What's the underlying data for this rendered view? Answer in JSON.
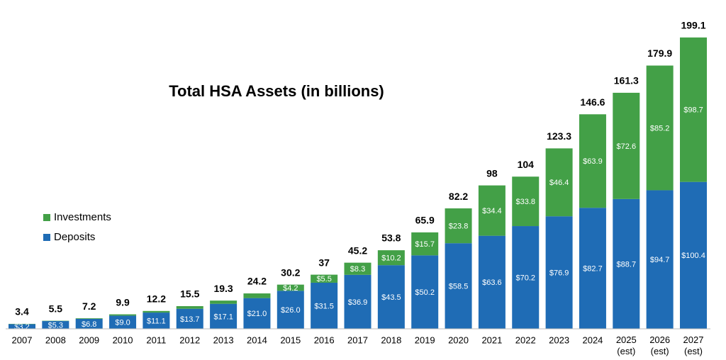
{
  "chart_data": {
    "type": "stacked-bar",
    "title": "Total HSA Assets (in billions)",
    "categories": [
      "2007",
      "2008",
      "2009",
      "2010",
      "2011",
      "2012",
      "2013",
      "2014",
      "2015",
      "2016",
      "2017",
      "2018",
      "2019",
      "2020",
      "2021",
      "2022",
      "2023",
      "2024",
      "2025 (est)",
      "2026 (est)",
      "2027 (est)"
    ],
    "series": [
      {
        "name": "Deposits",
        "color": "#1f6cb5",
        "values": [
          3.2,
          5.3,
          6.8,
          9.0,
          11.1,
          13.7,
          17.1,
          21.0,
          26.0,
          31.5,
          36.9,
          43.5,
          50.2,
          58.5,
          63.6,
          70.2,
          76.9,
          82.7,
          88.7,
          94.7,
          100.4
        ],
        "value_labels": [
          "$3.2",
          "$5.3",
          "$6.8",
          "$9.0",
          "$11.1",
          "$13.7",
          "$17.1",
          "$21.0",
          "$26.0",
          "$31.5",
          "$36.9",
          "$43.5",
          "$50.2",
          "$58.5",
          "$63.6",
          "$70.2",
          "$76.9",
          "$82.7",
          "$88.7",
          "$94.7",
          "$100.4"
        ]
      },
      {
        "name": "Investments",
        "color": "#43a047",
        "values": [
          0.2,
          0.2,
          0.4,
          0.9,
          1.1,
          1.8,
          2.2,
          3.2,
          4.2,
          5.5,
          8.3,
          10.2,
          15.7,
          23.8,
          34.4,
          33.8,
          46.4,
          63.9,
          72.6,
          85.2,
          98.7
        ],
        "value_labels": [
          null,
          null,
          null,
          null,
          null,
          null,
          null,
          null,
          "$4.2",
          "$5.5",
          "$8.3",
          "$10.2",
          "$15.7",
          "$23.8",
          "$34.4",
          "$33.8",
          "$46.4",
          "$63.9",
          "$72.6",
          "$85.2",
          "$98.7"
        ]
      }
    ],
    "totals": [
      3.4,
      5.5,
      7.2,
      9.9,
      12.2,
      15.5,
      19.3,
      24.2,
      30.2,
      37.0,
      45.2,
      53.8,
      65.9,
      82.2,
      98.0,
      104.0,
      123.3,
      146.6,
      161.3,
      179.9,
      199.1
    ],
    "total_labels": [
      "$3.4",
      "$5.5",
      "$7.2",
      "$9.9",
      "$12.2",
      "$15.5",
      "$19.3",
      "$24.2",
      "$30.2",
      "$37.0",
      "$45.2",
      "$53.8",
      "$65.9",
      "$82.2",
      "$98.0",
      "$104.0",
      "$123.3",
      "$146.6",
      "$161.3",
      "$179.9",
      "$199.1"
    ],
    "ylim": [
      0,
      200
    ]
  }
}
